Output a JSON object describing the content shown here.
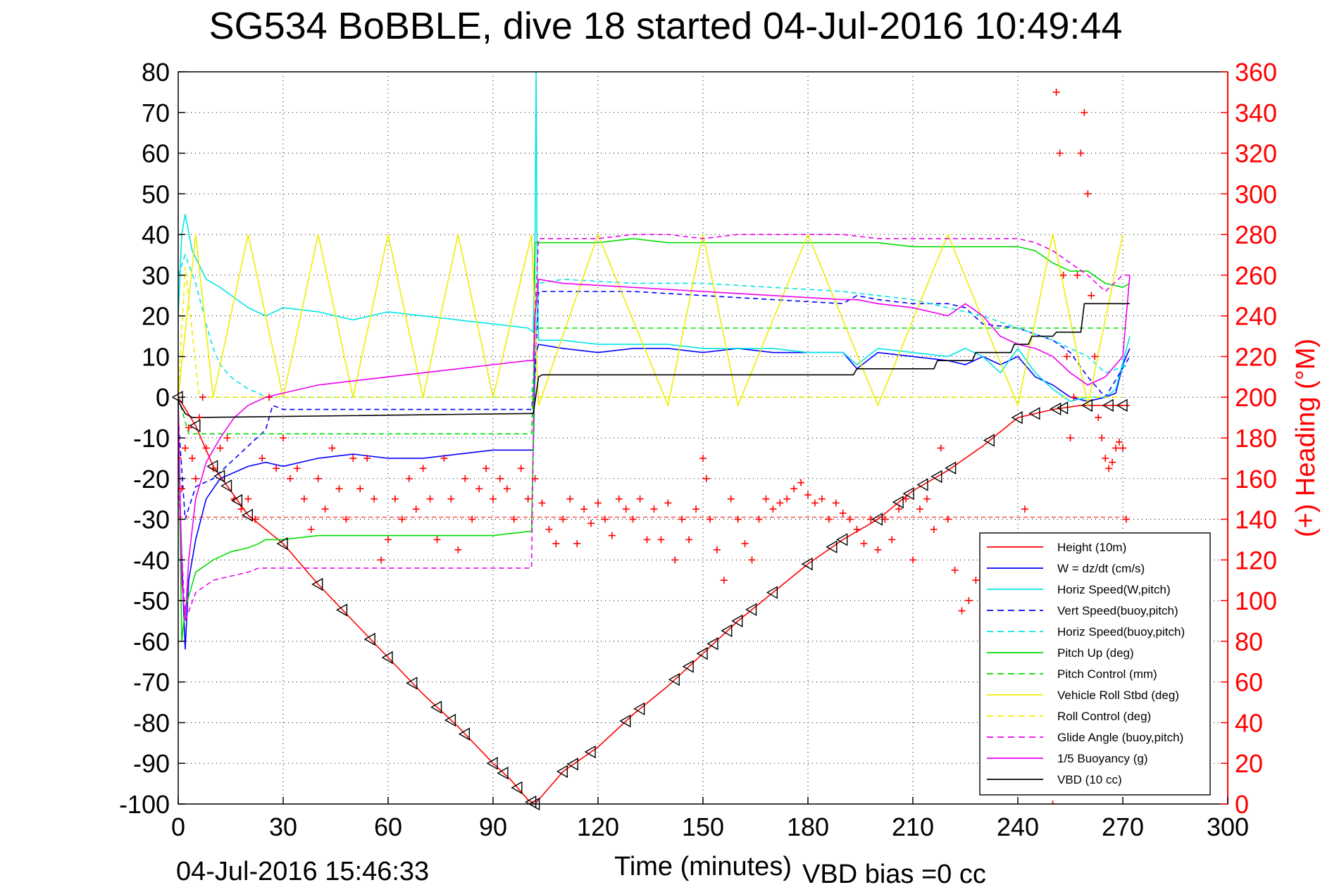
{
  "chart_data": {
    "type": "line",
    "title": "SG534 BoBBLE, dive 18 started 04-Jul-2016 10:49:44",
    "xlabel": "Time (minutes)",
    "ylabel": "",
    "y2label": "(+) Heading (°M)",
    "footer_left": "04-Jul-2016 15:46:33",
    "footer_right": "VBD bias =0 cc",
    "xlim": [
      0,
      300
    ],
    "ylim": [
      -100,
      80
    ],
    "y2lim": [
      0,
      360
    ],
    "x_ticks": [
      0,
      30,
      60,
      90,
      120,
      150,
      180,
      210,
      240,
      270,
      300
    ],
    "y_ticks": [
      80,
      70,
      60,
      50,
      40,
      30,
      20,
      10,
      0,
      -10,
      -20,
      -30,
      -40,
      -50,
      -60,
      -70,
      -80,
      -90,
      -100
    ],
    "y2_ticks": [
      360,
      340,
      320,
      300,
      280,
      260,
      240,
      220,
      200,
      180,
      160,
      140,
      120,
      100,
      80,
      60,
      40,
      20,
      0
    ],
    "grid": true,
    "legend_position": "bottom-right",
    "colors": {
      "heading": "#ff0000",
      "heading_mean": "#ff0000"
    },
    "series": [
      {
        "name": "Height (10m)",
        "color": "#ff0000",
        "dash": "solid",
        "x": [
          0,
          5,
          10,
          15,
          20,
          30,
          40,
          50,
          60,
          70,
          80,
          90,
          95,
          100,
          102,
          110,
          120,
          130,
          140,
          150,
          160,
          170,
          180,
          190,
          200,
          210,
          220,
          230,
          240,
          250,
          258,
          265,
          272
        ],
        "y": [
          0,
          -7,
          -17,
          -23,
          -29,
          -36,
          -46,
          -55,
          -64,
          -73,
          -81,
          -90,
          -94,
          -99,
          -100,
          -92,
          -86,
          -78,
          -71,
          -63,
          -55,
          -48,
          -41,
          -35,
          -30,
          -23,
          -18,
          -12,
          -5,
          -3,
          -2,
          -2,
          -2
        ]
      },
      {
        "name": "W = dz/dt (cm/s)",
        "color": "#0000ff",
        "dash": "solid",
        "x": [
          0,
          1,
          2,
          3,
          5,
          8,
          12,
          20,
          25,
          30,
          40,
          50,
          60,
          70,
          80,
          90,
          100,
          101.5,
          102,
          103,
          110,
          120,
          130,
          140,
          150,
          160,
          170,
          180,
          190,
          194,
          200,
          210,
          220,
          225,
          230,
          235,
          240,
          245,
          250,
          255,
          260,
          265,
          268,
          270,
          272
        ],
        "y": [
          -10,
          -40,
          -62,
          -45,
          -35,
          -25,
          -20,
          -17,
          -16,
          -17,
          -15,
          -14,
          -15,
          -15,
          -14,
          -13,
          -13,
          -13,
          10,
          13,
          12,
          11,
          12,
          12,
          11,
          12,
          11,
          11,
          11,
          7,
          11,
          10,
          9,
          8,
          10,
          8,
          10,
          5,
          3,
          0,
          -1,
          0,
          1,
          8,
          12
        ]
      },
      {
        "name": "Horiz Speed(W,pitch)",
        "color": "#00e5e5",
        "dash": "solid",
        "x": [
          0,
          1,
          2,
          4,
          8,
          12,
          20,
          25,
          30,
          40,
          50,
          60,
          70,
          80,
          90,
          100,
          101.5,
          102,
          102.3,
          102.6,
          103,
          110,
          120,
          130,
          140,
          150,
          160,
          170,
          180,
          190,
          194,
          200,
          210,
          220,
          225,
          230,
          235,
          240,
          245,
          250,
          255,
          260,
          265,
          268,
          272
        ],
        "y": [
          20,
          40,
          45,
          36,
          29,
          27,
          22,
          20,
          22,
          21,
          19,
          21,
          20,
          19,
          18,
          17,
          16,
          40,
          80,
          30,
          14,
          14,
          13,
          13,
          13,
          12,
          12,
          12,
          11,
          11,
          8,
          12,
          11,
          10,
          12,
          10,
          6,
          12,
          6,
          2,
          -1,
          0,
          0,
          2,
          15
        ]
      },
      {
        "name": "Vert Speed(buoy,pitch)",
        "color": "#0000ff",
        "dash": "dashed",
        "x": [
          0,
          2,
          5,
          10,
          15,
          20,
          25,
          26,
          27,
          30,
          60,
          90,
          101,
          102,
          103,
          110,
          130,
          150,
          170,
          190,
          194,
          200,
          210,
          220,
          225,
          230,
          240,
          250,
          255,
          260,
          265,
          272
        ],
        "y": [
          -5,
          -30,
          -22,
          -20,
          -16,
          -12,
          -8,
          -5,
          -2,
          -3,
          -3,
          -3,
          -3,
          5,
          26,
          26,
          26,
          25,
          24,
          23,
          25,
          24,
          23,
          23,
          22,
          18,
          17,
          14,
          11,
          5,
          0,
          10
        ]
      },
      {
        "name": "Horiz Speed(buoy,pitch)",
        "color": "#00e5e5",
        "dash": "dashed",
        "x": [
          0,
          2,
          5,
          8,
          10,
          12,
          15,
          20,
          23,
          25,
          30,
          60,
          90,
          101,
          102,
          103,
          110,
          130,
          150,
          170,
          190,
          200,
          210,
          220,
          230,
          240,
          250,
          260,
          265,
          272
        ],
        "y": [
          30,
          35,
          28,
          18,
          12,
          8,
          5,
          2,
          1,
          0,
          0,
          0,
          0,
          0,
          10,
          28,
          29,
          28,
          28,
          27,
          26,
          25,
          24,
          22,
          20,
          17,
          14,
          10,
          6,
          8
        ]
      },
      {
        "name": "Pitch Up (deg)",
        "color": "#00dd00",
        "dash": "solid",
        "x": [
          0,
          1,
          2,
          5,
          10,
          15,
          20,
          23,
          25,
          30,
          40,
          50,
          60,
          70,
          80,
          90,
          100,
          101,
          101.5,
          102,
          110,
          120,
          130,
          140,
          150,
          160,
          170,
          180,
          190,
          200,
          210,
          220,
          230,
          240,
          245,
          250,
          255,
          260,
          265,
          270,
          272
        ],
        "y": [
          0,
          -60,
          -52,
          -43,
          -40,
          -38,
          -37,
          -36,
          -35,
          -35,
          -34,
          -34,
          -34,
          -34,
          -34,
          -34,
          -33,
          -33,
          -10,
          38,
          38,
          38,
          39,
          38,
          38,
          38,
          38,
          38,
          38,
          38,
          37,
          37,
          37,
          37,
          36,
          33,
          31,
          31,
          28,
          27,
          28
        ]
      },
      {
        "name": "Pitch Control (mm)",
        "color": "#00dd00",
        "dash": "dashed",
        "x": [
          0,
          3,
          10,
          30,
          60,
          90,
          101,
          102,
          103,
          150,
          200,
          230,
          250,
          260,
          272
        ],
        "y": [
          0,
          -9,
          -9,
          -9,
          -9,
          -9,
          -9,
          17,
          17,
          17,
          17,
          17,
          17,
          17,
          17
        ]
      },
      {
        "name": "Vehicle Roll Stbd (deg)",
        "color": "#eeee00",
        "dash": "solid",
        "x": [
          0,
          5,
          10,
          20,
          30,
          40,
          50,
          60,
          70,
          80,
          90,
          101,
          103,
          120,
          140,
          150,
          160,
          180,
          200,
          220,
          240,
          250,
          260,
          270
        ],
        "y": [
          0,
          40,
          0,
          40,
          0,
          40,
          0,
          40,
          0,
          40,
          0,
          40,
          -2,
          40,
          -2,
          40,
          -2,
          40,
          -2,
          40,
          -2,
          40,
          -2,
          40
        ]
      },
      {
        "name": "Roll Control (deg)",
        "color": "#eeee00",
        "dash": "dashed",
        "x": [
          0,
          2,
          6,
          20,
          30,
          50,
          70,
          90,
          100,
          103,
          130,
          160,
          190,
          220,
          240,
          250,
          260,
          270
        ],
        "y": [
          0,
          32,
          0,
          0,
          0,
          0,
          0,
          0,
          0,
          0,
          0,
          0,
          0,
          0,
          0,
          0,
          0,
          0
        ]
      },
      {
        "name": "Glide Angle (buoy,pitch)",
        "color": "#ee00ee",
        "dash": "dashed",
        "x": [
          0,
          2,
          5,
          10,
          15,
          20,
          23,
          25,
          101,
          102,
          103,
          110,
          120,
          130,
          140,
          150,
          160,
          170,
          180,
          190,
          200,
          210,
          220,
          230,
          240,
          245,
          250,
          255,
          260,
          265,
          270,
          272
        ],
        "y": [
          -20,
          -55,
          -48,
          -45,
          -44,
          -43,
          -42,
          -42,
          -42,
          20,
          39,
          39,
          39,
          40,
          40,
          39,
          40,
          40,
          40,
          40,
          39,
          39,
          39,
          39,
          39,
          38,
          36,
          33,
          30,
          26,
          30,
          30
        ]
      },
      {
        "name": "1/5 Buoyancy (g)",
        "color": "#ee00ee",
        "dash": "solid",
        "x": [
          0,
          1,
          2,
          3,
          5,
          8,
          12,
          16,
          20,
          25,
          30,
          40,
          50,
          60,
          70,
          80,
          90,
          100,
          101.5,
          102,
          103,
          110,
          130,
          150,
          170,
          190,
          194,
          200,
          210,
          220,
          225,
          230,
          235,
          240,
          245,
          250,
          255,
          260,
          265,
          270,
          272
        ],
        "y": [
          0,
          -45,
          -55,
          -40,
          -25,
          -16,
          -10,
          -5,
          -2,
          0,
          1,
          3,
          4,
          5,
          6,
          7,
          8,
          9,
          9,
          20,
          29,
          28,
          27,
          26,
          25,
          24,
          24,
          23,
          22,
          20,
          23,
          20,
          15,
          13,
          12,
          10,
          6,
          3,
          5,
          10,
          30
        ]
      },
      {
        "name": "VBD (10 cc)",
        "color": "#000000",
        "dash": "solid",
        "x": [
          0,
          2,
          4,
          101,
          101.5,
          102,
          102.5,
          103,
          104,
          150,
          193,
          194,
          216,
          217,
          227,
          228,
          238,
          239,
          243,
          244,
          250,
          251,
          258,
          259,
          267,
          268,
          272
        ],
        "y": [
          -1,
          -4,
          -5,
          -4,
          -4,
          -1,
          2,
          5,
          5.5,
          5.5,
          5.5,
          7,
          7,
          9,
          9,
          11,
          11,
          13,
          13,
          15,
          15,
          16,
          16,
          23,
          23,
          23,
          23
        ]
      }
    ],
    "markers_triangles_t": [
      0,
      5,
      10,
      12,
      14,
      17,
      20,
      30,
      40,
      47,
      55,
      60,
      67,
      74,
      78,
      82,
      90,
      93,
      97,
      101,
      102,
      110,
      113,
      118,
      128,
      132,
      142,
      146,
      150,
      153,
      157,
      160,
      164,
      170,
      180,
      187,
      190,
      200,
      206,
      209,
      213,
      217,
      221,
      232,
      240,
      245,
      251,
      253,
      260,
      266,
      270
    ],
    "heading_mean_deg": 141,
    "heading": {
      "name": "Heading",
      "t": [
        0,
        1,
        2,
        3,
        4,
        5,
        6,
        7,
        8,
        10,
        12,
        14,
        16,
        18,
        20,
        22,
        24,
        26,
        28,
        30,
        32,
        34,
        36,
        38,
        40,
        42,
        44,
        46,
        48,
        50,
        52,
        54,
        56,
        58,
        60,
        62,
        64,
        66,
        68,
        70,
        72,
        74,
        76,
        78,
        80,
        82,
        84,
        86,
        88,
        90,
        92,
        94,
        96,
        98,
        100,
        102,
        104,
        106,
        108,
        110,
        112,
        114,
        116,
        118,
        120,
        122,
        124,
        126,
        128,
        130,
        132,
        134,
        136,
        138,
        140,
        142,
        144,
        146,
        148,
        150,
        151,
        152,
        154,
        156,
        158,
        160,
        162,
        164,
        166,
        168,
        170,
        172,
        174,
        176,
        178,
        180,
        182,
        184,
        186,
        188,
        190,
        192,
        194,
        196,
        198,
        200,
        202,
        204,
        206,
        208,
        210,
        212,
        214,
        216,
        218,
        220,
        222,
        224,
        226,
        228,
        230,
        232,
        234,
        236,
        238,
        240,
        242,
        244,
        246,
        248,
        250,
        251,
        252,
        253,
        254,
        255,
        256,
        257,
        258,
        259,
        260,
        261,
        262,
        263,
        264,
        265,
        266,
        267,
        268,
        269,
        270,
        271,
        272
      ],
      "deg": [
        170,
        155,
        175,
        185,
        170,
        160,
        190,
        200,
        175,
        165,
        175,
        180,
        150,
        145,
        150,
        140,
        170,
        200,
        165,
        180,
        160,
        165,
        150,
        135,
        160,
        145,
        175,
        155,
        140,
        170,
        155,
        170,
        150,
        120,
        130,
        150,
        140,
        160,
        145,
        165,
        150,
        130,
        170,
        150,
        125,
        160,
        140,
        155,
        165,
        150,
        160,
        155,
        140,
        165,
        150,
        160,
        148,
        135,
        128,
        140,
        150,
        128,
        145,
        138,
        148,
        140,
        132,
        150,
        145,
        140,
        150,
        130,
        145,
        130,
        148,
        120,
        140,
        130,
        145,
        170,
        160,
        140,
        125,
        110,
        150,
        140,
        128,
        120,
        140,
        150,
        145,
        148,
        150,
        155,
        158,
        152,
        148,
        150,
        140,
        148,
        143,
        140,
        135,
        128,
        140,
        125,
        140,
        130,
        145,
        150,
        120,
        145,
        150,
        135,
        175,
        140,
        115,
        95,
        100,
        110,
        90,
        70,
        40,
        20,
        60,
        120,
        145,
        90,
        50,
        20,
        0,
        350,
        320,
        260,
        220,
        180,
        200,
        260,
        320,
        340,
        300,
        250,
        220,
        190,
        180,
        170,
        165,
        168,
        175,
        178,
        175,
        140,
        130
      ]
    },
    "legend_entries": [
      "Height (10m)",
      "W = dz/dt (cm/s)",
      "Horiz Speed(W,pitch)",
      "Vert Speed(buoy,pitch)",
      "Horiz Speed(buoy,pitch)",
      "Pitch Up (deg)",
      "Pitch Control (mm)",
      "Vehicle Roll Stbd (deg)",
      "Roll Control (deg)",
      "Glide Angle (buoy,pitch)",
      "1/5 Buoyancy (g)",
      "VBD (10 cc)"
    ]
  }
}
